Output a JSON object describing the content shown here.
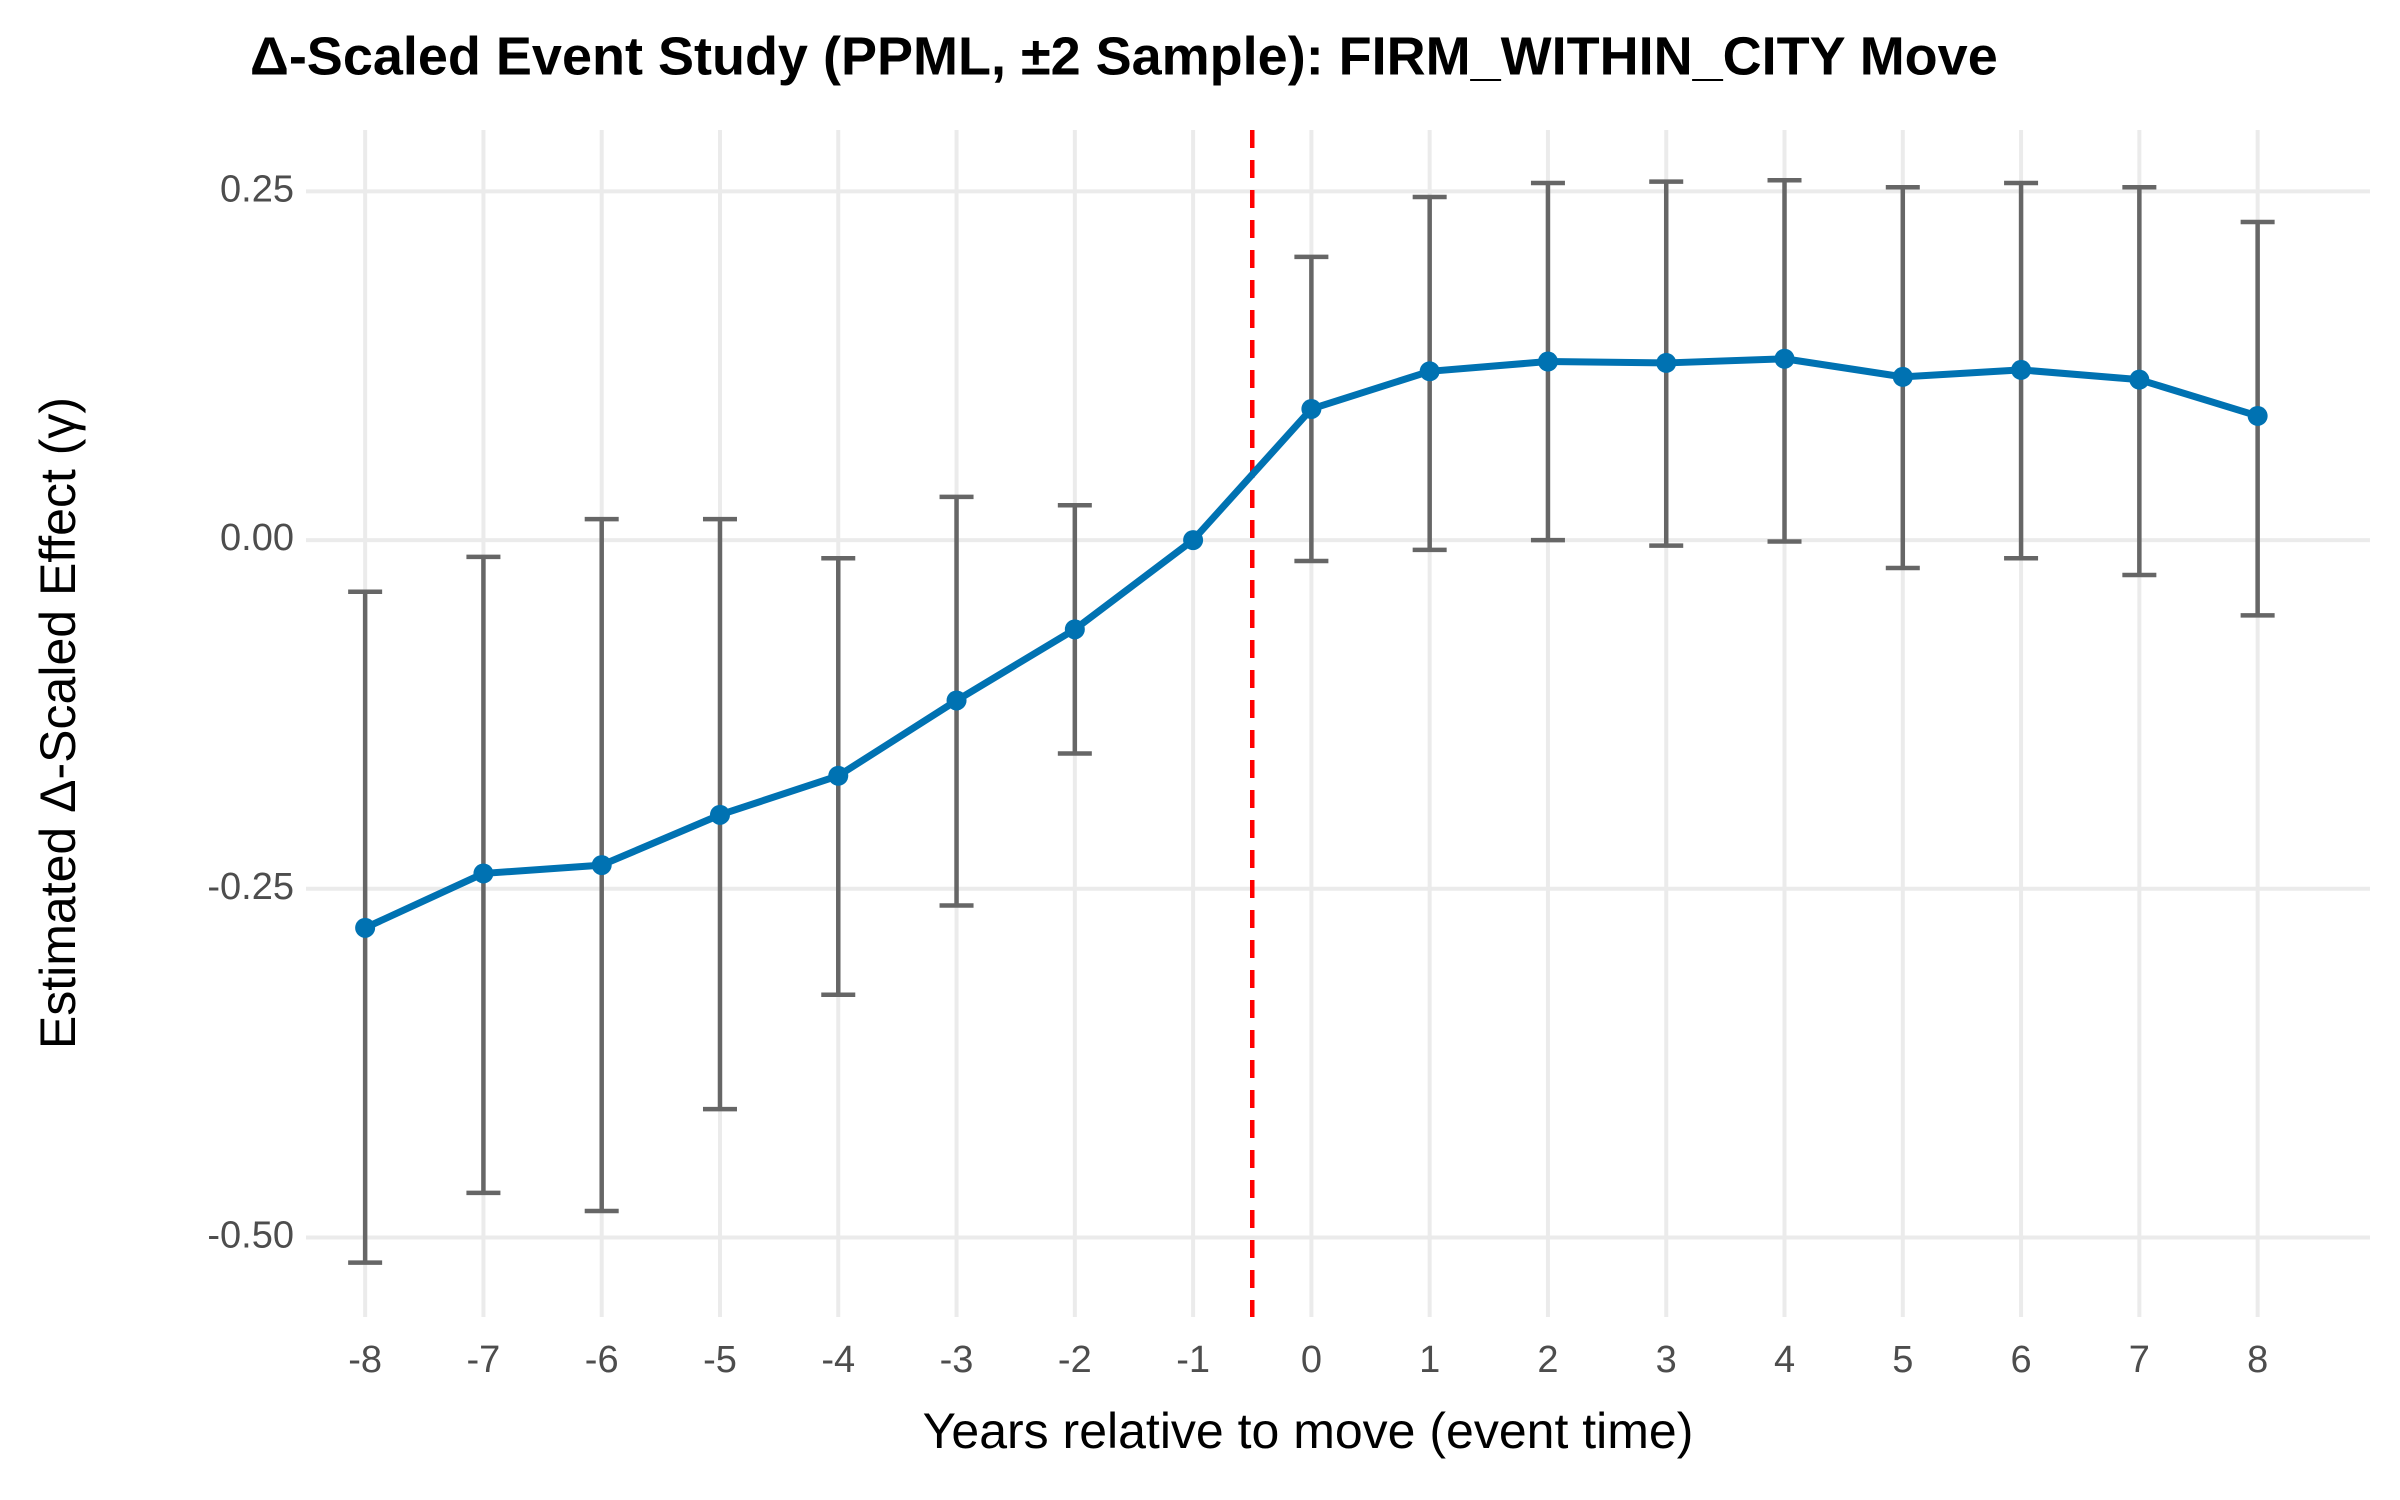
{
  "chart_data": {
    "type": "line",
    "title": "Δ-Scaled Event Study (PPML, ±2 Sample): FIRM_WITHIN_CITY Move",
    "x_label": "Years relative to move (event time)",
    "y_label": "Estimated Δ-Scaled Effect (γ)",
    "x": [
      -8,
      -7,
      -6,
      -5,
      -4,
      -3,
      -2,
      -1,
      0,
      1,
      2,
      3,
      4,
      5,
      6,
      7,
      8
    ],
    "series": [
      {
        "color": "#0072b2",
        "error_color": "#666666",
        "values": [
          -0.278,
          -0.239,
          -0.233,
          -0.197,
          -0.169,
          -0.115,
          -0.064,
          0,
          0.094,
          0.121,
          0.128,
          0.127,
          0.13,
          0.117,
          0.122,
          0.115,
          0.089
        ],
        "lower": [
          -0.518,
          -0.468,
          -0.481,
          -0.408,
          -0.326,
          -0.262,
          -0.153,
          null,
          -0.015,
          -0.007,
          0,
          -0.004,
          -0.001,
          -0.02,
          -0.013,
          -0.025,
          -0.054
        ],
        "upper": [
          -0.037,
          -0.012,
          0.015,
          0.015,
          -0.013,
          0.031,
          0.025,
          null,
          0.203,
          0.246,
          0.256,
          0.257,
          0.258,
          0.253,
          0.256,
          0.253,
          0.228
        ]
      }
    ],
    "vline": {
      "x": -0.5,
      "color": "#ff0000"
    },
    "xlim": [
      -8.5,
      8.95
    ],
    "ylim": [
      -0.557,
      0.294
    ],
    "xticks": [
      -8,
      -7,
      -6,
      -5,
      -4,
      -3,
      -2,
      -1,
      0,
      1,
      2,
      3,
      4,
      5,
      6,
      7,
      8
    ],
    "yticks": [
      {
        "value": -0.5,
        "label": "-0.50"
      },
      {
        "value": -0.25,
        "label": "-0.25"
      },
      {
        "value": 0,
        "label": "0.00"
      },
      {
        "value": 0.25,
        "label": "0.25"
      }
    ],
    "grid": true
  }
}
